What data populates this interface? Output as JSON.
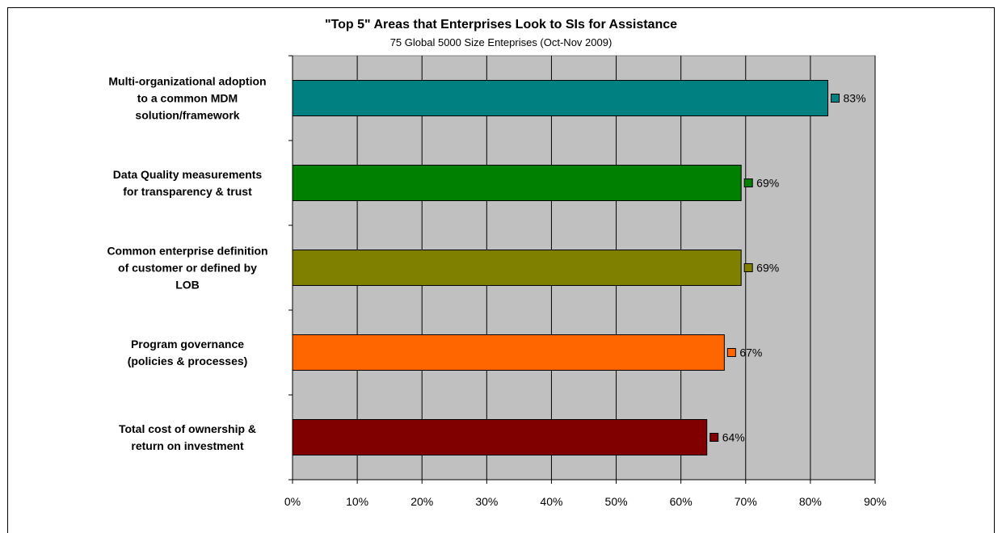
{
  "chart_data": {
    "type": "bar",
    "orientation": "horizontal",
    "title": "\"Top 5\" Areas that Enterprises Look to SIs for Assistance",
    "subtitle": "75 Global 5000 Size Enteprises (Oct-Nov 2009)",
    "xlim": [
      0,
      90
    ],
    "xticks": [
      0,
      10,
      20,
      30,
      40,
      50,
      60,
      70,
      80,
      90
    ],
    "tick_suffix": "%",
    "grid": true,
    "legend": "none",
    "categories": [
      [
        "Multi-organizational adoption",
        "to a common MDM",
        "solution/framework"
      ],
      [
        "Data Quality measurements",
        "for transparency & trust"
      ],
      [
        "Common enterprise definition",
        "of customer or defined by",
        "LOB"
      ],
      [
        "Program governance",
        "(policies & processes)"
      ],
      [
        "Total cost of ownership &",
        "return on investment"
      ]
    ],
    "values": [
      82.7,
      69.3,
      69.3,
      66.7,
      64.0
    ],
    "value_labels": [
      "83%",
      "69%",
      "69%",
      "67%",
      "64%"
    ],
    "colors": [
      "#008080",
      "#008000",
      "#808000",
      "#FF6600",
      "#800000"
    ],
    "plot_background": "#C0C0C0"
  }
}
